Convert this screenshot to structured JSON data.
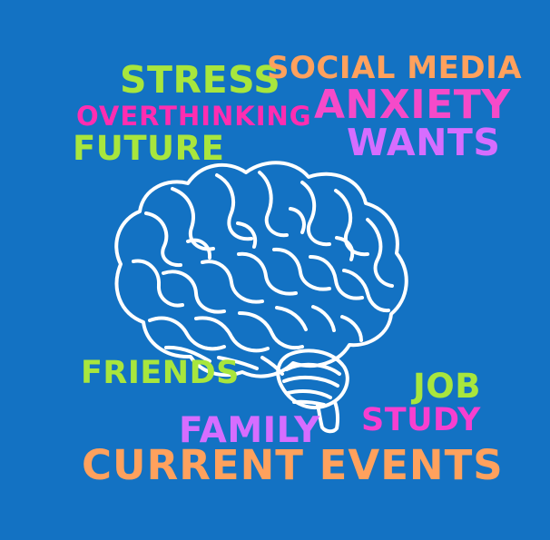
{
  "words": {
    "stress": "STRESS",
    "social_media": "SOCIAL MEDIA",
    "overthinking": "OVERTHINKING",
    "anxiety": "ANXIETY",
    "future": "FUTURE",
    "wants": "WANTS",
    "friends": "FRIENDS",
    "job": "JOB",
    "study": "STUDY",
    "family": "FAMILY",
    "current_events": "CURRENT EVENTS"
  },
  "icons": {
    "brain": "brain-icon"
  },
  "colors": {
    "background": "#1372c3",
    "green": "#a8e63d",
    "orange": "#ffa15d",
    "pink": "#ff2db1",
    "magenta": "#f54ac9",
    "purple": "#d66dff",
    "white": "#ffffff"
  }
}
